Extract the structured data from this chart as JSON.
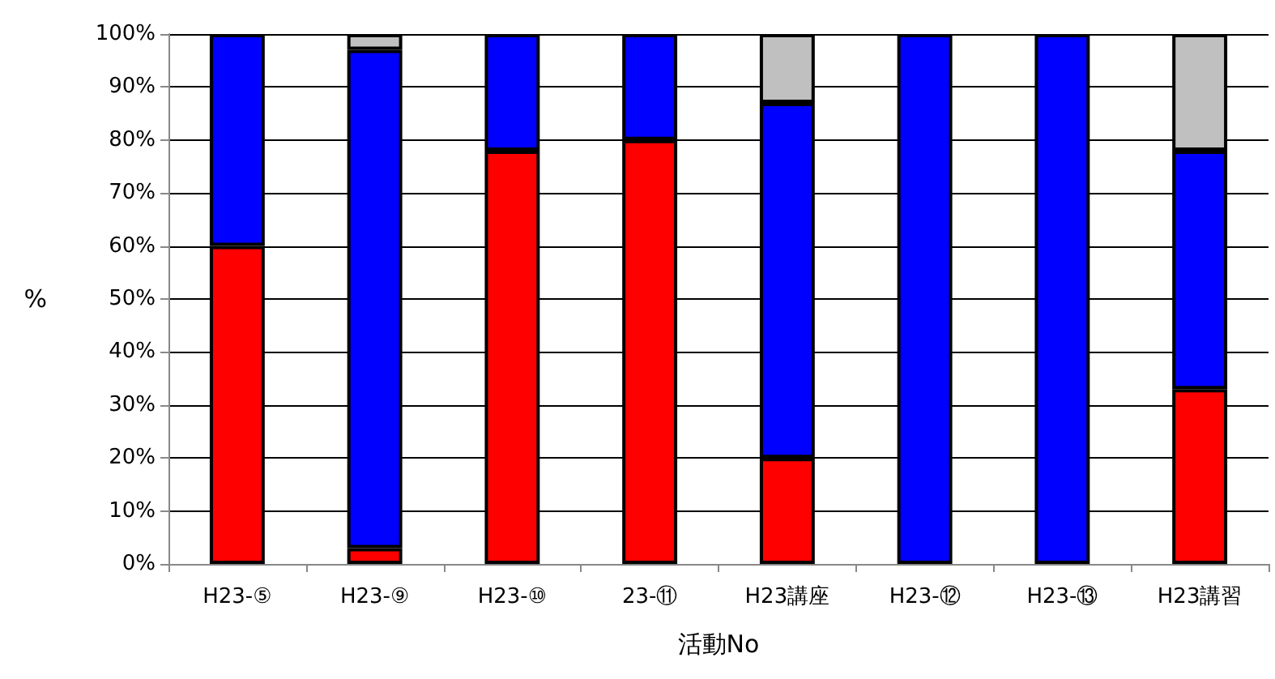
{
  "chart_data": {
    "type": "bar",
    "stacked": true,
    "xlabel": "活動No",
    "ylabel": "%",
    "categories": [
      "H23-⑤",
      "H23-⑨",
      "H23-⑩",
      "23-⑪",
      "H23講座",
      "H23-⑫",
      "H23-⑬",
      "H23講習"
    ],
    "series": [
      {
        "color": "#ff0000",
        "values": [
          60,
          3,
          78,
          80,
          20,
          null,
          null,
          33
        ]
      },
      {
        "color": "#0000ff",
        "values": [
          40,
          94,
          22,
          20,
          67,
          100,
          100,
          45
        ]
      },
      {
        "color": "#c0c0c0",
        "values": [
          null,
          3,
          null,
          null,
          13,
          null,
          null,
          22
        ]
      }
    ],
    "ylim": [
      0,
      100
    ],
    "yticks": [
      {
        "value": 0,
        "label": "0%"
      },
      {
        "value": 10,
        "label": "10%"
      },
      {
        "value": 20,
        "label": "20%"
      },
      {
        "value": 30,
        "label": "30%"
      },
      {
        "value": 40,
        "label": "40%"
      },
      {
        "value": 50,
        "label": "50%"
      },
      {
        "value": 60,
        "label": "60%"
      },
      {
        "value": 70,
        "label": "70%"
      },
      {
        "value": 80,
        "label": "80%"
      },
      {
        "value": 90,
        "label": "90%"
      },
      {
        "value": 100,
        "label": "100%"
      }
    ],
    "grid": "y"
  }
}
